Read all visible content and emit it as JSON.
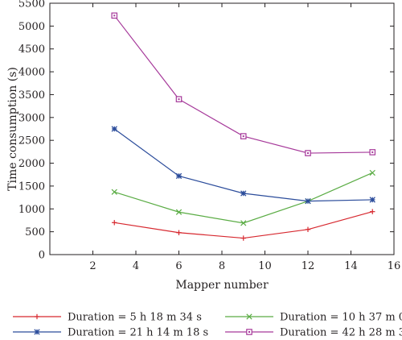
{
  "chart_data": {
    "type": "line",
    "xlabel": "Mapper number",
    "ylabel": "Time consumption (s)",
    "xlim": [
      0,
      16
    ],
    "ylim": [
      0,
      5500
    ],
    "xticks": [
      2,
      4,
      6,
      8,
      10,
      12,
      14,
      16
    ],
    "yticks": [
      0,
      500,
      1000,
      1500,
      2000,
      2500,
      3000,
      3500,
      4000,
      4500,
      5000,
      5500
    ],
    "grid": false,
    "legend_position": "bottom",
    "x": [
      3,
      6,
      9,
      12,
      15
    ],
    "series": [
      {
        "name": "Duration = 5 h 18 m 34 s",
        "values": [
          700,
          480,
          360,
          550,
          940
        ],
        "color": "#d7282f",
        "marker": "plus"
      },
      {
        "name": "Duration = 10 h 37 m 09 s",
        "values": [
          1370,
          930,
          690,
          1170,
          1790
        ],
        "color": "#5aac44",
        "marker": "x"
      },
      {
        "name": "Duration = 21 h 14 m 18 s",
        "values": [
          2750,
          1720,
          1340,
          1170,
          1200
        ],
        "color": "#2b4c9b",
        "marker": "star"
      },
      {
        "name": "Duration = 42 h 28 m 37 s",
        "values": [
          5230,
          3400,
          2590,
          2220,
          2240
        ],
        "color": "#a6399a",
        "marker": "square"
      }
    ]
  }
}
